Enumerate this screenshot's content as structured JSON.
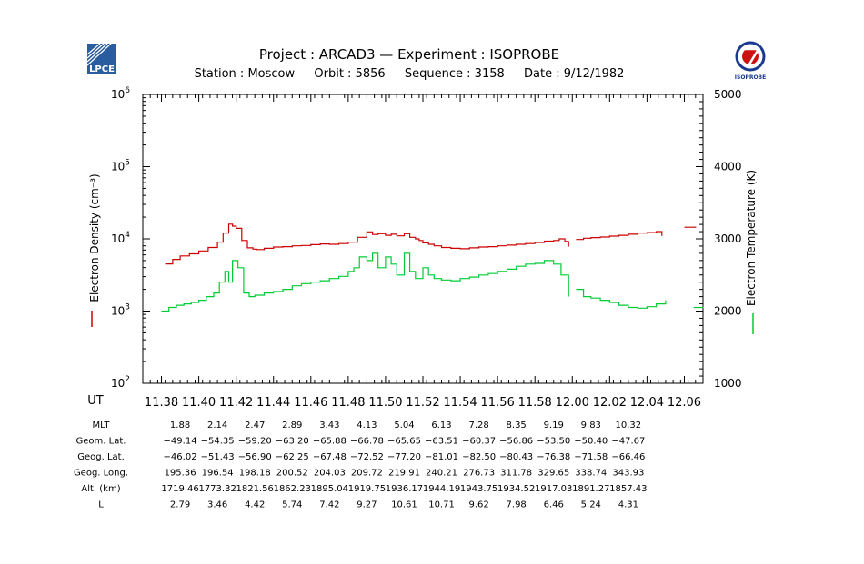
{
  "header": {
    "title_line": "Project : ARCAD3  —  Experiment : ISOPROBE",
    "subtitle_line": "Station : Moscow  —  Orbit :  5856  —  Sequence : 3158  —  Date : 9/12/1982",
    "left_logo_text": "LPCE",
    "right_logo_text": "ISOPROBE"
  },
  "chart_data": {
    "type": "line",
    "x_label": "UT",
    "x_ticks": [
      "11.38",
      "11.40",
      "11.42",
      "11.44",
      "11.46",
      "11.48",
      "11.50",
      "11.52",
      "11.54",
      "11.56",
      "11.58",
      "12.00",
      "12.02",
      "12.04",
      "12.06"
    ],
    "x_range_minutes": [
      697,
      727
    ],
    "y_left": {
      "label": "Electron Density (cm⁻³)",
      "scale": "log",
      "range": [
        100,
        1000000
      ],
      "ticks": [
        {
          "value": 100,
          "base": "10",
          "exp": "2"
        },
        {
          "value": 1000,
          "base": "10",
          "exp": "3"
        },
        {
          "value": 10000,
          "base": "10",
          "exp": "4"
        },
        {
          "value": 100000,
          "base": "10",
          "exp": "5"
        },
        {
          "value": 1000000,
          "base": "10",
          "exp": "6"
        }
      ]
    },
    "y_right": {
      "label": "Electron Temperature (K)",
      "scale": "linear",
      "range": [
        1000,
        5000
      ],
      "ticks": [
        "1000",
        "2000",
        "3000",
        "4000",
        "5000"
      ]
    },
    "series": [
      {
        "name": "Electron Density",
        "axis": "left",
        "color": "#cc0000",
        "t": [
          698.2,
          698.6,
          699.0,
          699.5,
          700.0,
          700.5,
          701.0,
          701.3,
          701.6,
          701.8,
          702.0,
          702.3,
          702.6,
          702.9,
          703.1,
          703.5,
          704.0,
          704.5,
          705.0,
          705.5,
          706.0,
          706.5,
          707.0,
          707.5,
          708.0,
          708.5,
          709.0,
          709.3,
          709.6,
          710.0,
          710.3,
          710.6,
          711.0,
          711.3,
          711.6,
          711.8,
          712.0,
          712.3,
          712.6,
          713.0,
          713.5,
          714.0,
          714.5,
          715.0,
          715.5,
          716.0,
          716.5,
          717.0,
          717.5,
          718.0,
          718.5,
          719.0,
          719.3,
          719.6,
          719.8
        ],
        "y": [
          4500,
          5200,
          5800,
          6200,
          6800,
          7600,
          9000,
          12000,
          16000,
          15000,
          14000,
          9500,
          7500,
          7200,
          7100,
          7400,
          7700,
          7800,
          8000,
          8100,
          8300,
          8500,
          8400,
          8600,
          9000,
          10500,
          12500,
          11500,
          11800,
          11200,
          11600,
          11000,
          11800,
          10500,
          10000,
          9500,
          8800,
          8400,
          8000,
          7600,
          7400,
          7300,
          7500,
          7700,
          7800,
          8000,
          8200,
          8400,
          8600,
          8900,
          9300,
          9500,
          10000,
          9200,
          7800
        ],
        "t2": [
          720.2,
          720.6,
          721.0,
          721.5,
          722.0,
          722.5,
          723.0,
          723.5,
          724.0,
          724.5,
          724.8
        ],
        "y2": [
          9800,
          10200,
          10400,
          10600,
          10900,
          11200,
          11600,
          12000,
          12200,
          12600,
          11000
        ],
        "t3": [
          726.0,
          726.6
        ],
        "y3": [
          14500,
          14800
        ]
      },
      {
        "name": "Electron Temperature",
        "axis": "right",
        "color": "#00cc33",
        "t": [
          698.0,
          698.4,
          698.8,
          699.2,
          699.6,
          700.0,
          700.4,
          700.8,
          701.1,
          701.4,
          701.6,
          701.8,
          702.1,
          702.4,
          702.7,
          703.0,
          703.5,
          704.0,
          704.5,
          705.0,
          705.5,
          706.0,
          706.5,
          707.0,
          707.5,
          708.0,
          708.3,
          708.6,
          709.0,
          709.3,
          709.6,
          710.0,
          710.3,
          710.6,
          711.0,
          711.3,
          711.6,
          712.0,
          712.3,
          712.6,
          713.0,
          713.5,
          714.0,
          714.5,
          715.0,
          715.5,
          716.0,
          716.5,
          717.0,
          717.5,
          718.0,
          718.5,
          719.0,
          719.4,
          719.8
        ],
        "y": [
          2000,
          2050,
          2080,
          2100,
          2120,
          2150,
          2200,
          2250,
          2400,
          2550,
          2400,
          2700,
          2600,
          2250,
          2200,
          2220,
          2250,
          2270,
          2300,
          2350,
          2380,
          2400,
          2420,
          2450,
          2480,
          2550,
          2600,
          2750,
          2700,
          2800,
          2600,
          2750,
          2650,
          2500,
          2800,
          2550,
          2450,
          2600,
          2500,
          2450,
          2430,
          2420,
          2450,
          2470,
          2500,
          2520,
          2550,
          2580,
          2620,
          2650,
          2660,
          2700,
          2650,
          2500,
          2200
        ],
        "t2": [
          720.2,
          720.6,
          721.0,
          721.5,
          722.0,
          722.5,
          723.0,
          723.5,
          724.0,
          724.5,
          725.0
        ],
        "y2": [
          2300,
          2200,
          2180,
          2150,
          2120,
          2080,
          2050,
          2040,
          2060,
          2100,
          2150
        ],
        "t3": [
          726.5,
          727.0
        ],
        "y3": [
          2050,
          2040
        ]
      }
    ]
  },
  "table": {
    "rows": [
      {
        "label": "MLT",
        "values": [
          "1.88",
          "2.14",
          "2.47",
          "2.89",
          "3.43",
          "4.13",
          "5.04",
          "6.13",
          "7.28",
          "8.35",
          "9.19",
          "9.83",
          "10.32"
        ]
      },
      {
        "label": "Geom. Lat.",
        "values": [
          "−49.14",
          "−54.35",
          "−59.20",
          "−63.20",
          "−65.88",
          "−66.78",
          "−65.65",
          "−63.51",
          "−60.37",
          "−56.86",
          "−53.50",
          "−50.40",
          "−47.67"
        ]
      },
      {
        "label": "Geog. Lat.",
        "values": [
          "−46.02",
          "−51.43",
          "−56.90",
          "−62.25",
          "−67.48",
          "−72.52",
          "−77.20",
          "−81.01",
          "−82.50",
          "−80.43",
          "−76.38",
          "−71.58",
          "−66.46"
        ]
      },
      {
        "label": "Geog. Long.",
        "values": [
          "195.36",
          "196.54",
          "198.18",
          "200.52",
          "204.03",
          "209.72",
          "219.91",
          "240.21",
          "276.73",
          "311.78",
          "329.65",
          "338.74",
          "343.93"
        ]
      },
      {
        "label": "Alt. (km)",
        "values": [
          "1719.46",
          "1773.32",
          "1821.56",
          "1862.23",
          "1895.04",
          "1919.75",
          "1936.17",
          "1944.19",
          "1943.75",
          "1934.52",
          "1917.03",
          "1891.27",
          "1857.43"
        ]
      },
      {
        "label": "L",
        "values": [
          "2.79",
          "3.46",
          "4.42",
          "5.74",
          "7.42",
          "9.27",
          "10.61",
          "10.71",
          "9.62",
          "7.98",
          "6.46",
          "5.24",
          "4.31"
        ]
      }
    ]
  },
  "colors": {
    "density": "#cc0000",
    "temperature": "#00cc33",
    "axes": "#000000",
    "logo_left": "#2a5d9f",
    "logo_right_red": "#cc1111",
    "logo_right_blue": "#1a3a8f"
  }
}
